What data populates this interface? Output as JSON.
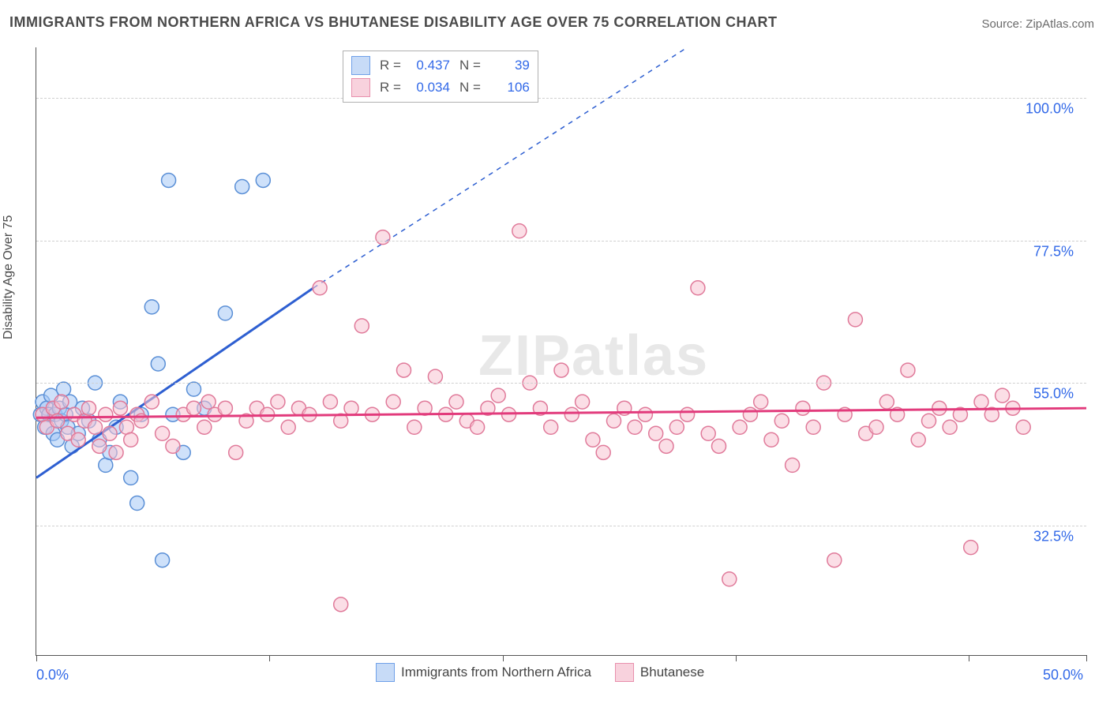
{
  "title": "IMMIGRANTS FROM NORTHERN AFRICA VS BHUTANESE DISABILITY AGE OVER 75 CORRELATION CHART",
  "source_label": "Source: ZipAtlas.com",
  "ylabel": "Disability Age Over 75",
  "watermark": "ZIPatlas",
  "chart": {
    "type": "scatter",
    "background_color": "#ffffff",
    "grid_color": "#d0d0d0",
    "axis_color": "#555555",
    "tick_label_color": "#3269e8",
    "tick_fontsize": 18,
    "xlim": [
      0,
      50
    ],
    "ylim": [
      12,
      108
    ],
    "x_ticks": [
      0,
      11.1,
      22.2,
      33.3,
      44.4,
      50
    ],
    "x_tick_labels": {
      "0": "0.0%",
      "50": "50.0%"
    },
    "y_gridlines": [
      32.5,
      55.0,
      77.5,
      100.0
    ],
    "y_tick_labels": [
      "32.5%",
      "55.0%",
      "77.5%",
      "100.0%"
    ],
    "stats_box": {
      "rows": [
        {
          "swatch_fill": "#c7dbf7",
          "swatch_border": "#6fa0e8",
          "r_label": "R =",
          "r_val": "0.437",
          "n_label": "N =",
          "n_val": "39"
        },
        {
          "swatch_fill": "#f8d2dd",
          "swatch_border": "#e890ad",
          "r_label": "R =",
          "r_val": "0.034",
          "n_label": "N =",
          "n_val": "106"
        }
      ]
    },
    "bottom_legend": [
      {
        "swatch_fill": "#c7dbf7",
        "swatch_border": "#6fa0e8",
        "label": "Immigrants from Northern Africa"
      },
      {
        "swatch_fill": "#f8d2dd",
        "swatch_border": "#e890ad",
        "label": "Bhutanese"
      }
    ],
    "series": [
      {
        "name": "northern_africa",
        "marker_fill": "rgba(165,200,245,0.55)",
        "marker_stroke": "#5a8fd6",
        "marker_radius": 9,
        "trend_color": "#2e5fd1",
        "trend_width": 3,
        "trend": {
          "x1": 0,
          "y1": 40,
          "x2_solid": 13.2,
          "y2_solid": 70,
          "x2_dash": 31,
          "y2_dash": 108
        },
        "points": [
          [
            0.2,
            50
          ],
          [
            0.3,
            52
          ],
          [
            0.4,
            48
          ],
          [
            0.5,
            51
          ],
          [
            0.6,
            50
          ],
          [
            0.7,
            53
          ],
          [
            0.8,
            47
          ],
          [
            0.9,
            50
          ],
          [
            1.0,
            46
          ],
          [
            1.1,
            51
          ],
          [
            1.2,
            49
          ],
          [
            1.3,
            54
          ],
          [
            1.4,
            50
          ],
          [
            1.5,
            48
          ],
          [
            1.6,
            52
          ],
          [
            1.7,
            45
          ],
          [
            2.0,
            47
          ],
          [
            2.2,
            51
          ],
          [
            2.5,
            49
          ],
          [
            2.8,
            55
          ],
          [
            3.0,
            46
          ],
          [
            3.3,
            42
          ],
          [
            3.5,
            44
          ],
          [
            3.8,
            48
          ],
          [
            4.0,
            52
          ],
          [
            4.5,
            40
          ],
          [
            4.8,
            36
          ],
          [
            5.0,
            50
          ],
          [
            5.5,
            67
          ],
          [
            5.8,
            58
          ],
          [
            6.3,
            87
          ],
          [
            6.5,
            50
          ],
          [
            7.0,
            44
          ],
          [
            7.5,
            54
          ],
          [
            8.0,
            51
          ],
          [
            9.0,
            66
          ],
          [
            9.8,
            86
          ],
          [
            10.8,
            87
          ],
          [
            6.0,
            27
          ]
        ]
      },
      {
        "name": "bhutanese",
        "marker_fill": "rgba(248,195,210,0.55)",
        "marker_stroke": "#e07a9a",
        "marker_radius": 9,
        "trend_color": "#e23b7c",
        "trend_width": 3,
        "trend": {
          "x1": 0,
          "y1": 49.5,
          "x2_solid": 50,
          "y2_solid": 51,
          "x2_dash": 50,
          "y2_dash": 51
        },
        "points": [
          [
            0.3,
            50
          ],
          [
            0.5,
            48
          ],
          [
            0.8,
            51
          ],
          [
            1.0,
            49
          ],
          [
            1.2,
            52
          ],
          [
            1.5,
            47
          ],
          [
            1.8,
            50
          ],
          [
            2.0,
            46
          ],
          [
            2.3,
            49
          ],
          [
            2.5,
            51
          ],
          [
            2.8,
            48
          ],
          [
            3.0,
            45
          ],
          [
            3.3,
            50
          ],
          [
            3.5,
            47
          ],
          [
            3.8,
            44
          ],
          [
            4.0,
            51
          ],
          [
            4.3,
            48
          ],
          [
            4.5,
            46
          ],
          [
            4.8,
            50
          ],
          [
            5.0,
            49
          ],
          [
            5.5,
            52
          ],
          [
            6.0,
            47
          ],
          [
            6.5,
            45
          ],
          [
            7.0,
            50
          ],
          [
            7.5,
            51
          ],
          [
            8.0,
            48
          ],
          [
            8.2,
            52
          ],
          [
            8.5,
            50
          ],
          [
            9.0,
            51
          ],
          [
            9.5,
            44
          ],
          [
            10.0,
            49
          ],
          [
            10.5,
            51
          ],
          [
            11.0,
            50
          ],
          [
            11.5,
            52
          ],
          [
            12.0,
            48
          ],
          [
            12.5,
            51
          ],
          [
            13.0,
            50
          ],
          [
            13.5,
            70
          ],
          [
            14.0,
            52
          ],
          [
            14.5,
            49
          ],
          [
            15.0,
            51
          ],
          [
            15.5,
            64
          ],
          [
            16.0,
            50
          ],
          [
            16.5,
            78
          ],
          [
            17.0,
            52
          ],
          [
            17.5,
            57
          ],
          [
            18.0,
            48
          ],
          [
            18.5,
            51
          ],
          [
            19.0,
            56
          ],
          [
            19.5,
            50
          ],
          [
            20.0,
            52
          ],
          [
            20.5,
            49
          ],
          [
            21.0,
            48
          ],
          [
            21.5,
            51
          ],
          [
            22.0,
            53
          ],
          [
            22.5,
            50
          ],
          [
            23.0,
            79
          ],
          [
            23.5,
            55
          ],
          [
            24.0,
            51
          ],
          [
            24.5,
            48
          ],
          [
            25.0,
            57
          ],
          [
            25.5,
            50
          ],
          [
            26.0,
            52
          ],
          [
            26.5,
            46
          ],
          [
            27.0,
            44
          ],
          [
            27.5,
            49
          ],
          [
            28.0,
            51
          ],
          [
            28.5,
            48
          ],
          [
            29.0,
            50
          ],
          [
            29.5,
            47
          ],
          [
            30.0,
            45
          ],
          [
            30.5,
            48
          ],
          [
            31.0,
            50
          ],
          [
            31.5,
            70
          ],
          [
            32.0,
            47
          ],
          [
            32.5,
            45
          ],
          [
            33.0,
            24
          ],
          [
            33.5,
            48
          ],
          [
            34.0,
            50
          ],
          [
            34.5,
            52
          ],
          [
            35.0,
            46
          ],
          [
            35.5,
            49
          ],
          [
            36.0,
            42
          ],
          [
            36.5,
            51
          ],
          [
            37.0,
            48
          ],
          [
            37.5,
            55
          ],
          [
            38.0,
            27
          ],
          [
            38.5,
            50
          ],
          [
            39.0,
            65
          ],
          [
            39.5,
            47
          ],
          [
            40.0,
            48
          ],
          [
            40.5,
            52
          ],
          [
            41.0,
            50
          ],
          [
            41.5,
            57
          ],
          [
            42.0,
            46
          ],
          [
            42.5,
            49
          ],
          [
            43.0,
            51
          ],
          [
            43.5,
            48
          ],
          [
            44.0,
            50
          ],
          [
            44.5,
            29
          ],
          [
            45.0,
            52
          ],
          [
            45.5,
            50
          ],
          [
            46.0,
            53
          ],
          [
            46.5,
            51
          ],
          [
            47.0,
            48
          ],
          [
            14.5,
            20
          ]
        ]
      }
    ]
  }
}
